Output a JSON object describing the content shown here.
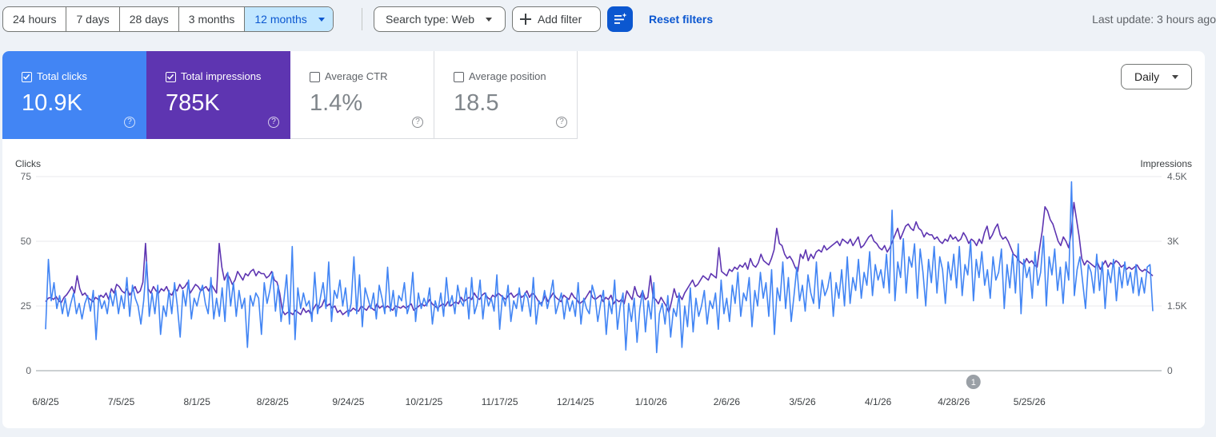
{
  "date_ranges": [
    {
      "label": "24 hours",
      "selected": false
    },
    {
      "label": "7 days",
      "selected": false
    },
    {
      "label": "28 days",
      "selected": false
    },
    {
      "label": "3 months",
      "selected": false
    },
    {
      "label": "12 months",
      "selected": true
    }
  ],
  "filters": {
    "search_type_label": "Search type: Web",
    "add_filter_label": "Add filter",
    "reset_label": "Reset filters"
  },
  "last_update": "Last update: 3 hours ago",
  "metrics": [
    {
      "label": "Total clicks",
      "value": "10.9K",
      "checked": true,
      "color": "#4285f4"
    },
    {
      "label": "Total impressions",
      "value": "785K",
      "checked": true,
      "color": "#5e35b1"
    },
    {
      "label": "Average CTR",
      "value": "1.4%",
      "checked": false,
      "color": "#ffffff"
    },
    {
      "label": "Average position",
      "value": "18.5",
      "checked": false,
      "color": "#ffffff"
    }
  ],
  "granularity": {
    "selected": "Daily"
  },
  "chart_data": {
    "type": "line",
    "ylabel_left": "Clicks",
    "ylabel_right": "Impressions",
    "y_left_ticks": [
      "75",
      "50",
      "25",
      "0"
    ],
    "y_right_ticks": [
      "4.5K",
      "3K",
      "1.5K",
      "0"
    ],
    "ylim_left": [
      0,
      75
    ],
    "ylim_right": [
      0,
      4500
    ],
    "x_tick_labels": [
      "6/8/25",
      "7/5/25",
      "8/1/25",
      "8/28/25",
      "9/24/25",
      "10/21/25",
      "11/17/25",
      "12/14/25",
      "1/10/26",
      "2/6/26",
      "3/5/26",
      "4/1/26",
      "4/28/26",
      "5/25/26"
    ],
    "annotation": {
      "label": "1",
      "date": "5/5/26"
    },
    "grid": true,
    "series": [
      {
        "name": "Clicks",
        "color": "#4285f4",
        "axis": "left",
        "values": [
          16,
          43,
          27,
          34,
          24,
          29,
          22,
          28,
          21,
          26,
          30,
          22,
          26,
          20,
          26,
          29,
          23,
          31,
          12,
          29,
          24,
          27,
          22,
          30,
          25,
          31,
          22,
          29,
          24,
          36,
          21,
          33,
          28,
          25,
          18,
          27,
          42,
          21,
          30,
          22,
          33,
          14,
          25,
          21,
          31,
          22,
          34,
          25,
          13,
          31,
          25,
          35,
          20,
          28,
          25,
          30,
          33,
          26,
          22,
          36,
          20,
          28,
          21,
          32,
          19,
          38,
          25,
          34,
          21,
          31,
          24,
          28,
          9,
          29,
          25,
          30,
          28,
          14,
          34,
          26,
          31,
          38,
          23,
          33,
          19,
          27,
          37,
          18,
          48,
          12,
          32,
          24,
          30,
          25,
          27,
          19,
          38,
          22,
          28,
          34,
          24,
          42,
          19,
          31,
          28,
          35,
          25,
          32,
          21,
          26,
          44,
          22,
          37,
          17,
          32,
          28,
          24,
          30,
          20,
          33,
          28,
          22,
          40,
          23,
          31,
          21,
          29,
          27,
          34,
          22,
          26,
          38,
          19,
          30,
          24,
          28,
          25,
          32,
          18,
          27,
          23,
          30,
          21,
          36,
          25,
          29,
          22,
          33,
          27,
          25,
          32,
          20,
          36,
          22,
          26,
          35,
          20,
          30,
          25,
          28,
          23,
          37,
          16,
          29,
          25,
          33,
          19,
          27,
          24,
          32,
          23,
          30,
          28,
          21,
          36,
          18,
          27,
          25,
          31,
          24,
          29,
          35,
          22,
          26,
          30,
          20,
          28,
          23,
          27,
          21,
          34,
          18,
          28,
          24,
          22,
          33,
          29,
          19,
          26,
          31,
          14,
          27,
          22,
          35,
          16,
          25,
          30,
          8,
          26,
          19,
          28,
          11,
          24,
          31,
          15,
          27,
          20,
          34,
          7,
          22,
          26,
          18,
          29,
          13,
          24,
          21,
          30,
          9,
          25,
          17,
          32,
          15,
          28,
          21,
          25,
          31,
          18,
          27,
          24,
          30,
          16,
          35,
          22,
          28,
          19,
          33,
          26,
          38,
          21,
          30,
          27,
          36,
          17,
          31,
          25,
          38,
          28,
          34,
          21,
          39,
          14,
          32,
          27,
          42,
          24,
          36,
          19,
          29,
          40,
          27,
          33,
          23,
          37,
          30,
          26,
          42,
          24,
          35,
          29,
          32,
          38,
          21,
          34,
          28,
          39,
          25,
          44,
          26,
          36,
          31,
          43,
          28,
          38,
          33,
          46,
          29,
          41,
          35,
          39,
          32,
          45,
          30,
          62,
          27,
          42,
          36,
          51,
          30,
          44,
          40,
          49,
          28,
          47,
          38,
          25,
          43,
          34,
          48,
          30,
          44,
          39,
          26,
          42,
          35,
          45,
          32,
          48,
          29,
          41,
          37,
          50,
          27,
          43,
          36,
          46,
          33,
          39,
          28,
          44,
          35,
          38,
          47,
          24,
          41,
          32,
          45,
          30,
          49,
          22,
          43,
          36,
          40,
          28,
          46,
          33,
          38,
          52,
          25,
          44,
          37,
          47,
          31,
          40,
          26,
          42,
          35,
          73,
          29,
          39,
          44,
          34,
          24,
          41,
          38,
          30,
          45,
          31,
          42,
          24,
          39,
          34,
          43,
          27,
          40,
          32,
          42,
          33,
          38,
          30,
          41,
          29,
          36,
          30,
          40,
          41,
          23
        ],
        "note": ""
      },
      {
        "name": "Impressions",
        "color": "#5e35b1",
        "axis": "right",
        "values": [
          1600,
          1680,
          1700,
          1650,
          1720,
          1620,
          1580,
          1700,
          1760,
          1850,
          1950,
          1800,
          2200,
          1900,
          1750,
          1800,
          1700,
          1650,
          1600,
          1700,
          1650,
          1750,
          1700,
          1800,
          1650,
          1900,
          1800,
          2000,
          1950,
          1850,
          1800,
          1900,
          1750,
          1850,
          1950,
          1800,
          1850,
          2050,
          2950,
          1900,
          1800,
          1950,
          1850,
          1800,
          1900,
          1850,
          1950,
          1800,
          1750,
          1900,
          1850,
          2000,
          1900,
          1950,
          2050,
          1800,
          1900,
          2000,
          1950,
          1850,
          1900,
          1950,
          1850,
          2000,
          1900,
          1800,
          2950,
          2400,
          2100,
          2250,
          2150,
          2000,
          2100,
          2300,
          2200,
          2100,
          2250,
          2200,
          2300,
          2350,
          2200,
          2300,
          2250,
          2250,
          2150,
          2200,
          2300,
          2100,
          2050,
          1800,
          1400,
          1300,
          1350,
          1350,
          1300,
          1400,
          1350,
          1300,
          1450,
          1350,
          1400,
          1300,
          1450,
          1550,
          1450,
          1500,
          1650,
          1500,
          1550,
          1450,
          1500,
          1350,
          1400,
          1300,
          1350,
          1400,
          1380,
          1450,
          1400,
          1380,
          1500,
          1450,
          1400,
          1500,
          1450,
          1400,
          1550,
          1450,
          1500,
          1450,
          1500,
          1450,
          1400,
          1500,
          1480,
          1450,
          1500,
          1450,
          1500,
          1550,
          1400,
          1450,
          1500,
          1550,
          1500,
          1550,
          1650,
          1550,
          1500,
          1450,
          1500,
          1550,
          1500,
          1600,
          1500,
          1550,
          1600,
          1550,
          1700,
          1600,
          1650,
          1700,
          1650,
          1800,
          1700,
          1650,
          1750,
          1800,
          1700,
          1650,
          1750,
          1700,
          1800,
          1750,
          1700,
          1650,
          1750,
          1800,
          1700,
          1750,
          1800,
          1700,
          1750,
          1850,
          1700,
          1800,
          1750,
          1650,
          1550,
          1600,
          1750,
          1600,
          1700,
          1800,
          1700,
          1650,
          1600,
          1750,
          1700,
          1650,
          1800,
          1700,
          1650,
          1550,
          1600,
          1650,
          1750,
          1850,
          1700,
          1650,
          1700,
          1750,
          1600,
          1700,
          1650,
          1750,
          1550,
          1650,
          1600,
          1650,
          1550,
          1850,
          1750,
          1650,
          1950,
          1750,
          1700,
          1850,
          1650,
          1700,
          2200,
          1700,
          1650,
          1550,
          1700,
          1600,
          1500,
          1350,
          1600,
          1900,
          1700,
          1750,
          1650,
          1800,
          1900,
          2000,
          2100,
          1950,
          2000,
          2100,
          2200,
          2150,
          2100,
          2250,
          2200,
          2150,
          2850,
          2300,
          2250,
          2200,
          2350,
          2300,
          2400,
          2350,
          2450,
          2400,
          2500,
          2350,
          2600,
          2450,
          2400,
          2500,
          2700,
          2550,
          2500,
          2450,
          2600,
          2800,
          3300,
          2950,
          2900,
          2700,
          2600,
          2650,
          2550,
          2400,
          2300,
          2700,
          2600,
          2800,
          2550,
          2700,
          2600,
          2750,
          2800,
          2750,
          2900,
          2800,
          2850,
          2900,
          2950,
          3000,
          2900,
          3050,
          3000,
          2950,
          3050,
          2900,
          3000,
          3100,
          2850,
          2900,
          3000,
          3100,
          3150,
          3000,
          2950,
          2850,
          2800,
          2900,
          2750,
          2850,
          3000,
          3150,
          3300,
          3050,
          3200,
          3350,
          3400,
          3300,
          3250,
          3450,
          3300,
          3250,
          3100,
          3200,
          3150,
          3150,
          3050,
          3100,
          3000,
          2950,
          3050,
          3000,
          3150,
          3050,
          3100,
          3000,
          3050,
          3200,
          3100,
          2950,
          3050,
          3000,
          2900,
          3050,
          2950,
          3200,
          3350,
          3050,
          3150,
          3300,
          3400,
          3150,
          3050,
          3100,
          3000,
          2850,
          2700,
          2650,
          2550,
          2500,
          2450,
          2600,
          2500,
          2550,
          2450,
          2400,
          2850,
          3250,
          3800,
          3700,
          3500,
          3400,
          3200,
          3000,
          2900,
          3100,
          3000,
          2850,
          3200,
          3900,
          3500,
          3100,
          2600,
          2450,
          2550,
          2500,
          2450,
          2400,
          2500,
          2350,
          2450,
          2550,
          2400,
          2500,
          2450,
          2550,
          2500,
          2400,
          2450,
          2350,
          2400,
          2350,
          2400,
          2450,
          2350,
          2300,
          2350,
          2300,
          2250,
          2200
        ]
      }
    ]
  }
}
